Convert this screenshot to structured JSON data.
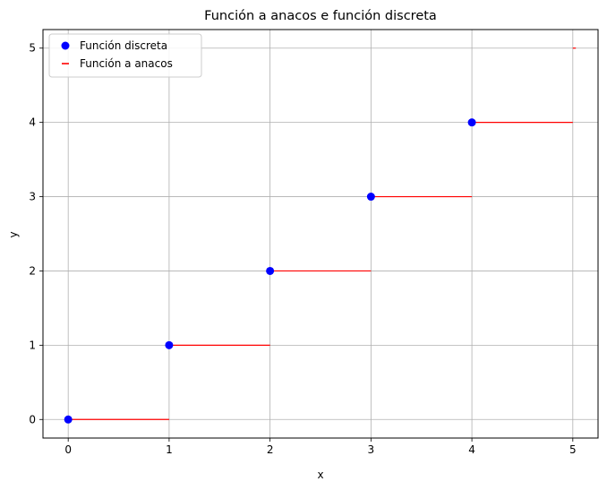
{
  "chart_data": {
    "type": "scatter",
    "title": "Función a anacos e función discreta",
    "xlabel": "x",
    "ylabel": "y",
    "xlim": [
      -0.25,
      5.25
    ],
    "ylim": [
      -0.25,
      5.25
    ],
    "xticks": [
      0,
      1,
      2,
      3,
      4,
      5
    ],
    "yticks": [
      0,
      1,
      2,
      3,
      4,
      5
    ],
    "grid": true,
    "legend_position": "top-left",
    "series": [
      {
        "name": "Función discreta",
        "kind": "scatter",
        "color": "#0000ff",
        "x": [
          0,
          1,
          2,
          3,
          4
        ],
        "y": [
          0,
          1,
          2,
          3,
          4
        ]
      },
      {
        "name": "Función a anacos",
        "kind": "step",
        "color": "#ff0000",
        "segments": [
          {
            "x": [
              0,
              1
            ],
            "y": 0
          },
          {
            "x": [
              1,
              2
            ],
            "y": 1
          },
          {
            "x": [
              2,
              3
            ],
            "y": 2
          },
          {
            "x": [
              3,
              4
            ],
            "y": 3
          },
          {
            "x": [
              4,
              5
            ],
            "y": 4
          },
          {
            "x": [
              5,
              5.03
            ],
            "y": 5
          }
        ]
      }
    ]
  }
}
